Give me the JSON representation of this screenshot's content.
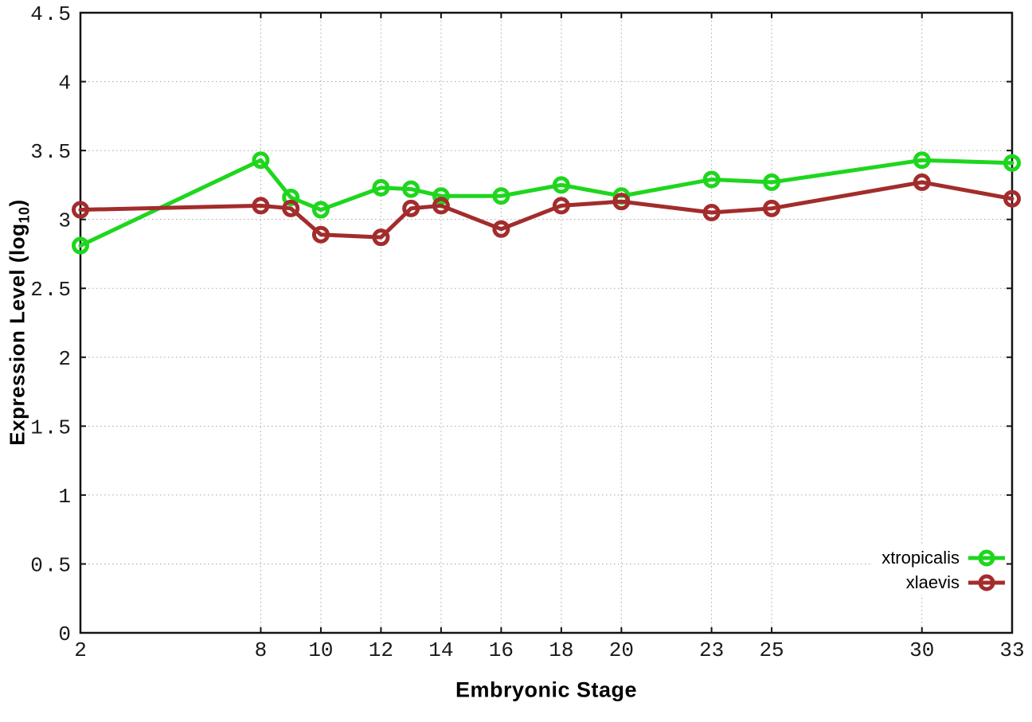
{
  "chart_data": {
    "type": "line",
    "title": "",
    "xlabel": "Embryonic Stage",
    "ylabel": "Expression Level (log10)",
    "ylabel_parts": {
      "prefix": "Expression Level (log",
      "sub": "10",
      "suffix": ")"
    },
    "x": [
      2,
      8,
      9,
      10,
      12,
      13,
      14,
      16,
      18,
      20,
      23,
      25,
      30,
      33
    ],
    "xlim": [
      2,
      33
    ],
    "ylim": [
      0,
      4.5
    ],
    "x_tick_labels": [
      "2",
      "8",
      "10",
      "12",
      "14",
      "16",
      "18",
      "20",
      "23",
      "25",
      "30",
      "33"
    ],
    "x_tick_values": [
      2,
      8,
      10,
      12,
      14,
      16,
      18,
      20,
      23,
      25,
      30,
      33
    ],
    "y_tick_labels": [
      "0",
      "0.5",
      "1",
      "1.5",
      "2",
      "2.5",
      "3",
      "3.5",
      "4",
      "4.5"
    ],
    "y_tick_values": [
      0,
      0.5,
      1,
      1.5,
      2,
      2.5,
      3,
      3.5,
      4,
      4.5
    ],
    "grid": true,
    "legend_position": "bottom-right",
    "series": [
      {
        "name": "xtropicalis",
        "color": "#1ed61e",
        "values": [
          2.81,
          3.43,
          3.16,
          3.07,
          3.23,
          3.22,
          3.17,
          3.17,
          3.25,
          3.17,
          3.29,
          3.27,
          3.43,
          3.41
        ]
      },
      {
        "name": "xlaevis",
        "color": "#a32c2c",
        "values": [
          3.07,
          3.1,
          3.08,
          2.89,
          2.87,
          3.08,
          3.1,
          2.93,
          3.1,
          3.13,
          3.05,
          3.08,
          3.27,
          3.15
        ]
      }
    ],
    "style": {
      "grid_color": "#a8a8a8",
      "axis_color": "#141414",
      "tick_label_color": "#1a1a1a",
      "background": "#ffffff"
    }
  }
}
